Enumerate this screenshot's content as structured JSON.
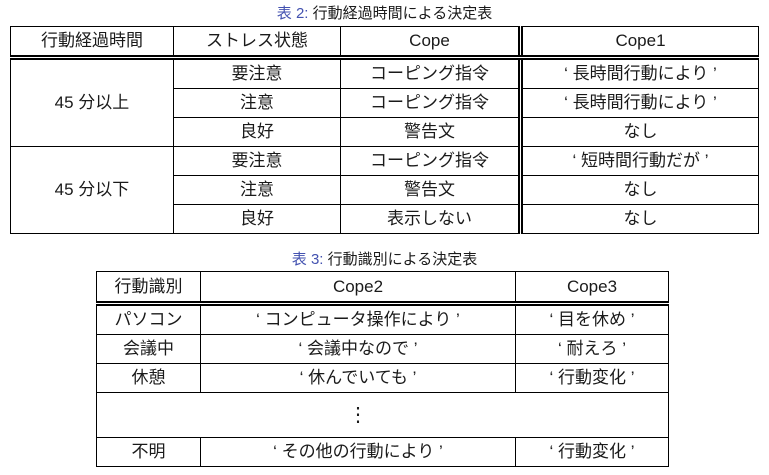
{
  "page": {
    "background": "#ffffff",
    "text_color": "#1a1a1a",
    "caption_label_color": "#4352b0",
    "border_color": "#000000"
  },
  "table2": {
    "caption_label": "表 2:",
    "caption_text": "行動経過時間による決定表",
    "headers": [
      "行動経過時間",
      "ストレス状態",
      "Cope",
      "Cope1"
    ],
    "groups": [
      {
        "time": "45 分以上",
        "rows": [
          {
            "stress": "要注意",
            "cope": "コーピング指令",
            "cope1": "‘ 長時間行動により ’"
          },
          {
            "stress": "注意",
            "cope": "コーピング指令",
            "cope1": "‘ 長時間行動により ’"
          },
          {
            "stress": "良好",
            "cope": "警告文",
            "cope1": "なし"
          }
        ]
      },
      {
        "time": "45 分以下",
        "rows": [
          {
            "stress": "要注意",
            "cope": "コーピング指令",
            "cope1": "‘ 短時間行動だが ’"
          },
          {
            "stress": "注意",
            "cope": "警告文",
            "cope1": "なし"
          },
          {
            "stress": "良好",
            "cope": "表示しない",
            "cope1": "なし"
          }
        ]
      }
    ]
  },
  "table3": {
    "caption_label": "表 3:",
    "caption_text": "行動識別による決定表",
    "headers": [
      "行動識別",
      "Cope2",
      "Cope3"
    ],
    "rows": [
      {
        "action": "パソコン",
        "cope2": "‘ コンピュータ操作により ’",
        "cope3": "‘ 目を休め ’"
      },
      {
        "action": "会議中",
        "cope2": "‘ 会議中なので ’",
        "cope3": "‘ 耐えろ ’"
      },
      {
        "action": "休憩",
        "cope2": "‘ 休んでいても ’",
        "cope3": "‘ 行動変化 ’"
      }
    ],
    "ellipsis": "⋮",
    "last_row": {
      "action": "不明",
      "cope2": "‘ その他の行動により ’",
      "cope3": "‘ 行動変化 ’"
    }
  }
}
